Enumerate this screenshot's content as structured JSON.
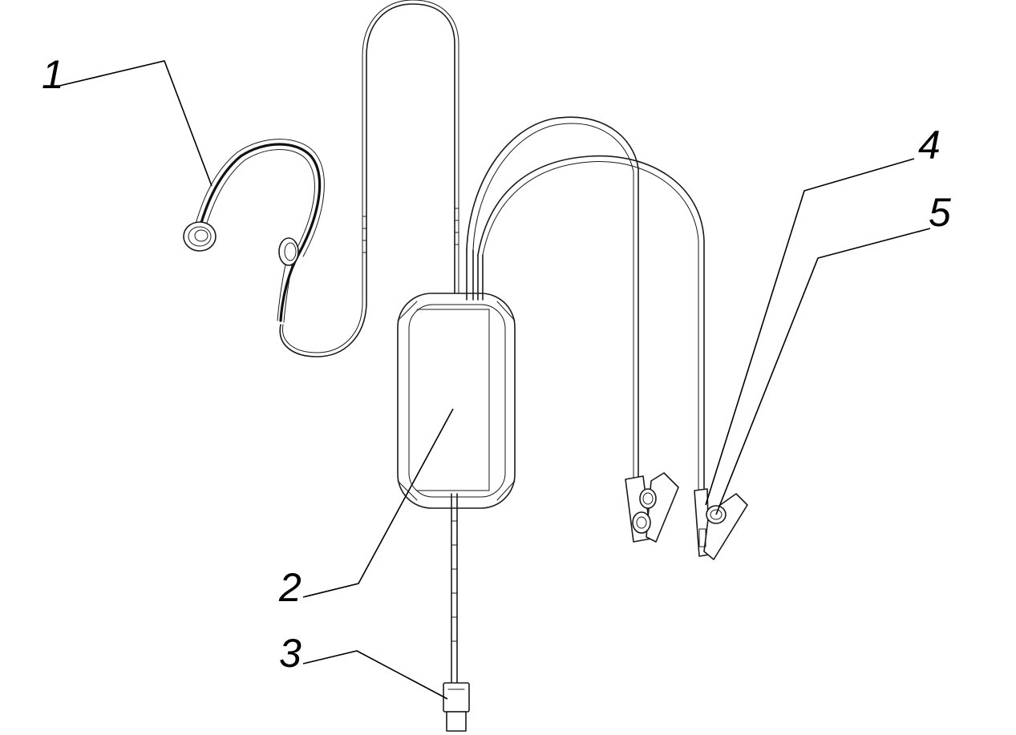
{
  "figure": {
    "callouts": [
      {
        "id": "1",
        "label": "1"
      },
      {
        "id": "2",
        "label": "2"
      },
      {
        "id": "3",
        "label": "3"
      },
      {
        "id": "4",
        "label": "4"
      },
      {
        "id": "5",
        "label": "5"
      }
    ]
  }
}
